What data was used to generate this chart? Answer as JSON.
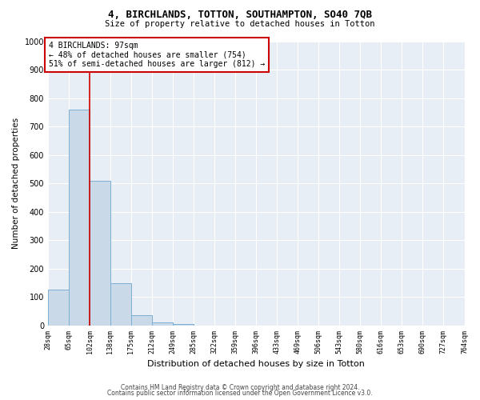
{
  "title1": "4, BIRCHLANDS, TOTTON, SOUTHAMPTON, SO40 7QB",
  "title2": "Size of property relative to detached houses in Totton",
  "xlabel": "Distribution of detached houses by size in Totton",
  "ylabel": "Number of detached properties",
  "footer1": "Contains HM Land Registry data © Crown copyright and database right 2024.",
  "footer2": "Contains public sector information licensed under the Open Government Licence v3.0.",
  "bar_edges": [
    28,
    65,
    102,
    138,
    175,
    212,
    249,
    285,
    322,
    359,
    396,
    433,
    469,
    506,
    543,
    580,
    616,
    653,
    690,
    727,
    764
  ],
  "bar_heights": [
    127,
    760,
    510,
    150,
    37,
    12,
    5,
    0,
    0,
    0,
    0,
    0,
    0,
    0,
    0,
    0,
    0,
    0,
    0,
    0
  ],
  "bar_color": "#c9d9e8",
  "bar_edgecolor": "#7bafd4",
  "property_line_x": 102,
  "property_line_color": "#cc0000",
  "annotation_text": "4 BIRCHLANDS: 97sqm\n← 48% of detached houses are smaller (754)\n51% of semi-detached houses are larger (812) →",
  "ylim": [
    0,
    1000
  ],
  "background_color": "#e8eef5",
  "grid_color": "#ffffff",
  "tick_labels": [
    "28sqm",
    "65sqm",
    "102sqm",
    "138sqm",
    "175sqm",
    "212sqm",
    "249sqm",
    "285sqm",
    "322sqm",
    "359sqm",
    "396sqm",
    "433sqm",
    "469sqm",
    "506sqm",
    "543sqm",
    "580sqm",
    "616sqm",
    "653sqm",
    "690sqm",
    "727sqm",
    "764sqm"
  ]
}
